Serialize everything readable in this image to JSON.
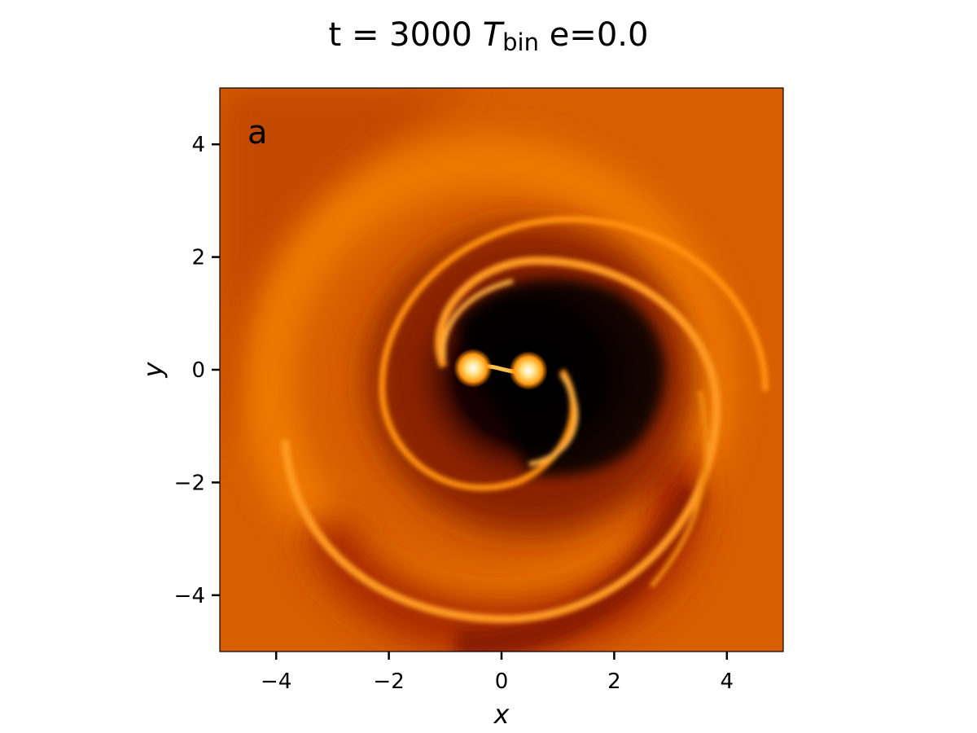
{
  "chart_data": {
    "type": "image",
    "title": {
      "before": "t = 3000 ",
      "symbol": "T",
      "subscript": "bin",
      "after": " e=0.0"
    },
    "annotation": "a",
    "xlabel": "x",
    "ylabel": "y",
    "xlim": [
      -5,
      5
    ],
    "ylim": [
      -5,
      5
    ],
    "xticks": [
      {
        "value": -4,
        "label": "−4"
      },
      {
        "value": -2,
        "label": "−2"
      },
      0,
      2,
      4
    ],
    "yticks": [
      {
        "value": -4,
        "label": "−4"
      },
      {
        "value": -2,
        "label": "−2"
      },
      0,
      2,
      4
    ]
  }
}
